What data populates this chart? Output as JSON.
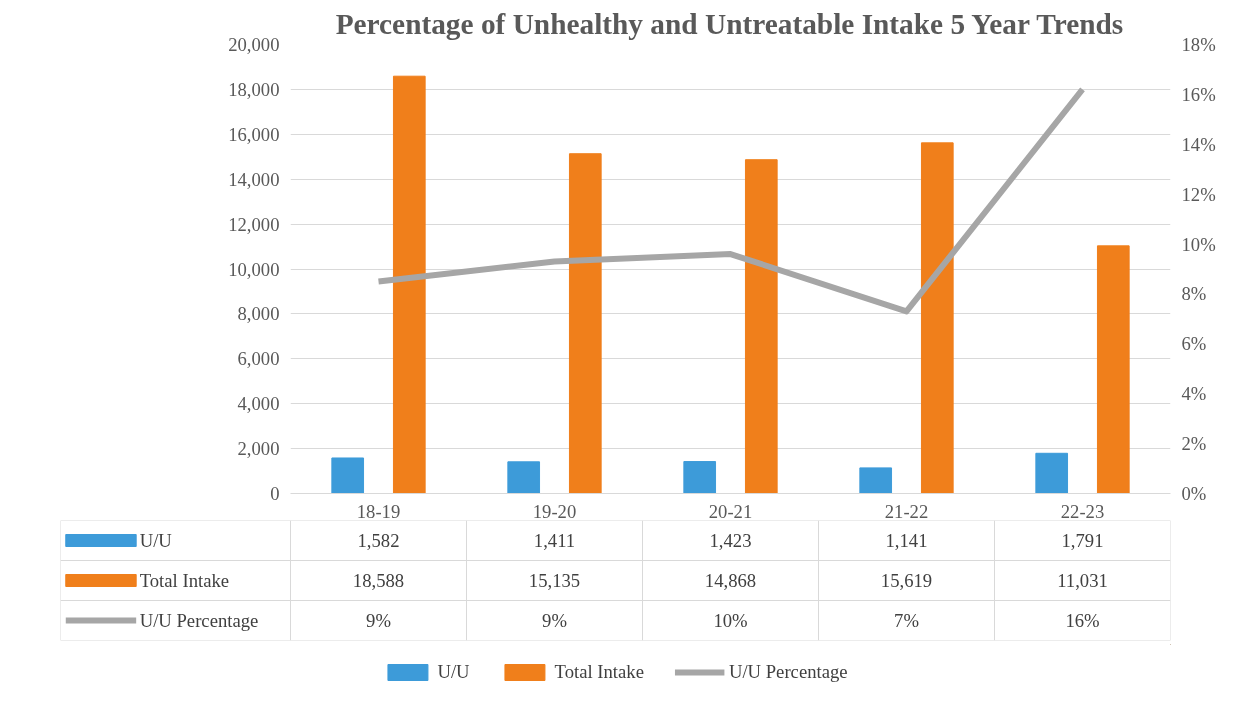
{
  "chart_data": {
    "type": "bar",
    "title": "Percentage of Unhealthy and Untreatable Intake 5 Year Trends",
    "categories": [
      "18-19",
      "19-20",
      "20-21",
      "21-22",
      "22-23"
    ],
    "series": [
      {
        "name": "U/U",
        "color": "#3d9bd9",
        "values": [
          1582,
          1411,
          1423,
          1141,
          1791
        ],
        "value_labels": [
          "1,582",
          "1,411",
          "1,423",
          "1,141",
          "1,791"
        ]
      },
      {
        "name": "Total Intake",
        "color": "#f07f1b",
        "values": [
          18588,
          15135,
          14868,
          15619,
          11031
        ],
        "value_labels": [
          "18,588",
          "15,135",
          "14,868",
          "15,619",
          "11,031"
        ]
      },
      {
        "name": "U/U Percentage",
        "type": "line",
        "axis": "y2",
        "color": "#a6a6a6",
        "values": [
          8.5,
          9.3,
          9.6,
          7.3,
          16.2
        ],
        "value_labels": [
          "9%",
          "9%",
          "10%",
          "7%",
          "16%"
        ]
      }
    ],
    "ylim": [
      0,
      20000
    ],
    "yticks": [
      0,
      {
        "value": 2000,
        "label": "2,000"
      },
      {
        "value": 4000,
        "label": "4,000"
      },
      {
        "value": 6000,
        "label": "6,000"
      },
      {
        "value": 8000,
        "label": "8,000"
      },
      {
        "value": 10000,
        "label": "10,000"
      },
      {
        "value": 12000,
        "label": "12,000"
      },
      {
        "value": 14000,
        "label": "14,000"
      },
      {
        "value": 16000,
        "label": "16,000"
      },
      {
        "value": 18000,
        "label": "18,000"
      },
      {
        "value": 20000,
        "label": "20,000"
      }
    ],
    "y2lim": [
      0,
      18
    ],
    "y2ticks": [
      {
        "value": 0,
        "label": "0%"
      },
      {
        "value": 2,
        "label": "2%"
      },
      {
        "value": 4,
        "label": "4%"
      },
      {
        "value": 6,
        "label": "6%"
      },
      {
        "value": 8,
        "label": "8%"
      },
      {
        "value": 10,
        "label": "10%"
      },
      {
        "value": 12,
        "label": "12%"
      },
      {
        "value": 14,
        "label": "14%"
      },
      {
        "value": 16,
        "label": "16%"
      },
      {
        "value": 18,
        "label": "18%"
      }
    ],
    "grid": "y",
    "legend": "bottom",
    "marker": "none",
    "line_style": "solid"
  }
}
